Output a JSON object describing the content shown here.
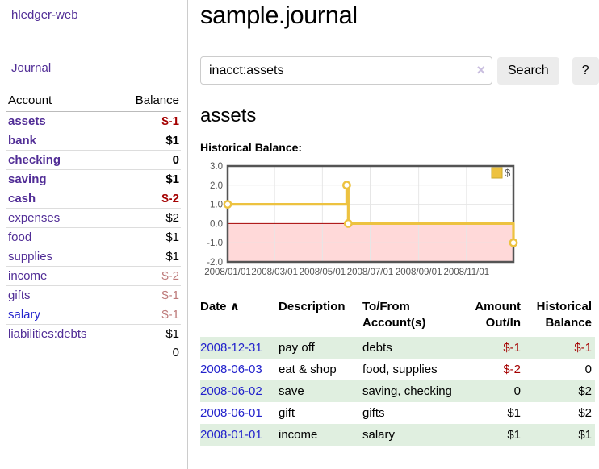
{
  "colors": {
    "purple": "#512d96",
    "blue": "#2222cc",
    "neg": "#a40000",
    "negmuted": "#bd7979",
    "rowgreen": "#e0efe0",
    "gold": "#edc240",
    "pink": "#ffd9d9",
    "zero": "#a40000",
    "chartborder": "#545454",
    "grid": "#e6e6e6",
    "divider": "#cccccc",
    "btnbg": "#ececec",
    "axistext": "#545454"
  },
  "app": {
    "brand": "hledger-web",
    "nav_journal": "Journal"
  },
  "sidebar": {
    "header": {
      "account": "Account",
      "balance": "Balance"
    },
    "accounts": [
      {
        "name": "assets",
        "depth": 1,
        "bold": true,
        "balance": "$-1",
        "bal_class": "neg"
      },
      {
        "name": "bank",
        "depth": 2,
        "bold": true,
        "balance": "$1",
        "bal_class": ""
      },
      {
        "name": "checking",
        "depth": 3,
        "bold": true,
        "balance": "0",
        "bal_class": ""
      },
      {
        "name": "saving",
        "depth": 3,
        "bold": true,
        "balance": "$1",
        "bal_class": ""
      },
      {
        "name": "cash",
        "depth": 2,
        "bold": true,
        "balance": "$-2",
        "bal_class": "neg"
      },
      {
        "name": "expenses",
        "depth": 1,
        "bold": false,
        "balance": "$2",
        "bal_class": ""
      },
      {
        "name": "food",
        "depth": 2,
        "bold": false,
        "balance": "$1",
        "bal_class": ""
      },
      {
        "name": "supplies",
        "depth": 2,
        "bold": false,
        "balance": "$1",
        "bal_class": ""
      },
      {
        "name": "income",
        "depth": 1,
        "bold": false,
        "balance": "$-2",
        "bal_class": "negmuted"
      },
      {
        "name": "gifts",
        "depth": 2,
        "bold": false,
        "balance": "$-1",
        "bal_class": "negmuted"
      },
      {
        "name": "salary",
        "depth": 2,
        "bold": false,
        "balance": "$-1",
        "bal_class": "negmuted",
        "link": "blue"
      },
      {
        "name": "liabilities:debts",
        "depth": 1,
        "bold": false,
        "balance": "$1",
        "bal_class": ""
      }
    ],
    "total": "0"
  },
  "main": {
    "title": "sample.journal",
    "search": {
      "value": "inacct:assets",
      "clear_icon": "×",
      "button_label": "Search",
      "help_label": "?"
    },
    "account_heading": "assets",
    "chart_label": "Historical Balance:",
    "register": {
      "headers": {
        "date": "Date",
        "sort_icon": "∧",
        "description": "Description",
        "tofrom_line1": "To/From",
        "tofrom_line2": "Account(s)",
        "amount_line1": "Amount",
        "amount_line2": "Out/In",
        "balance_line1": "Historical",
        "balance_line2": "Balance"
      },
      "rows": [
        {
          "date": "2008-12-31",
          "description": "pay off",
          "accounts": "debts",
          "amount": "$-1",
          "amount_neg": true,
          "balance": "$-1",
          "balance_neg": true,
          "shade": true
        },
        {
          "date": "2008-06-03",
          "description": "eat & shop",
          "accounts": "food, supplies",
          "amount": "$-2",
          "amount_neg": true,
          "balance": "0",
          "balance_neg": false,
          "shade": false
        },
        {
          "date": "2008-06-02",
          "description": "save",
          "accounts": "saving, checking",
          "amount": "0",
          "amount_neg": false,
          "balance": "$2",
          "balance_neg": false,
          "shade": true
        },
        {
          "date": "2008-06-01",
          "description": "gift",
          "accounts": "gifts",
          "amount": "$1",
          "amount_neg": false,
          "balance": "$2",
          "balance_neg": false,
          "shade": false
        },
        {
          "date": "2008-01-01",
          "description": "income",
          "accounts": "salary",
          "amount": "$1",
          "amount_neg": false,
          "balance": "$1",
          "balance_neg": false,
          "shade": true
        }
      ]
    }
  },
  "chart_data": {
    "type": "line",
    "step": true,
    "title": "Historical Balance",
    "legend": "$",
    "legend_position": "top-right",
    "grid": true,
    "series": [
      {
        "name": "$",
        "color": "#edc240",
        "points": [
          [
            "2008-01-01",
            1
          ],
          [
            "2008-06-01",
            2
          ],
          [
            "2008-06-03",
            0
          ],
          [
            "2008-12-31",
            -1
          ]
        ]
      }
    ],
    "x_range": [
      "2008-01-01",
      "2008-12-31"
    ],
    "ylim": [
      -2,
      3
    ],
    "y_ticks": [
      3.0,
      2.0,
      1.0,
      0.0,
      -1.0,
      -2.0
    ],
    "x_ticks": [
      "2008/01/01",
      "2008/03/01",
      "2008/05/01",
      "2008/07/01",
      "2008/09/01",
      "2008/11/01"
    ],
    "negative_region_fill": "#ffd9d9",
    "zero_line_color": "#a40000"
  }
}
